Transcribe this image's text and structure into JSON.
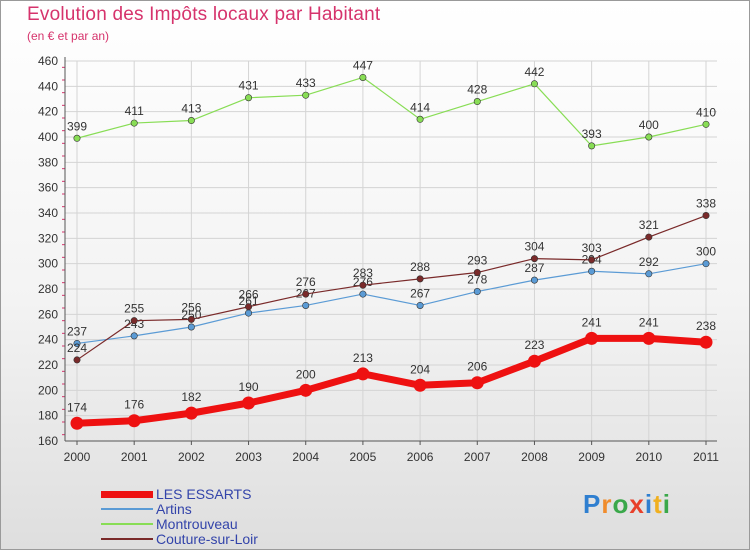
{
  "chart_data": {
    "type": "line",
    "title": "Evolution des Impôts locaux par Habitant",
    "subtitle": "(en € et par an)",
    "xlabel": "",
    "ylabel": "",
    "categories": [
      "2000",
      "2001",
      "2002",
      "2003",
      "2004",
      "2005",
      "2006",
      "2007",
      "2008",
      "2009",
      "2010",
      "2011"
    ],
    "ylim": [
      160,
      460
    ],
    "yticks": [
      160,
      180,
      200,
      220,
      240,
      260,
      280,
      300,
      320,
      340,
      360,
      380,
      400,
      420,
      440,
      460
    ],
    "series": [
      {
        "name": "Montrouveau",
        "color": "#88dd55",
        "width": 1.2,
        "values": [
          399,
          411,
          413,
          431,
          433,
          447,
          414,
          428,
          442,
          393,
          400,
          410
        ],
        "labels": [
          "399",
          "411",
          "413",
          "431",
          "433",
          "447",
          "414",
          "428",
          "442",
          "393",
          "400",
          "410"
        ]
      },
      {
        "name": "Artins",
        "color": "#5b9bd5",
        "width": 1.2,
        "values": [
          237,
          243,
          250,
          261,
          267,
          276,
          267,
          278,
          287,
          294,
          292,
          300
        ],
        "labels": [
          "237",
          "243",
          "250",
          "261",
          "267",
          "276",
          "267",
          "278",
          "287",
          "294",
          "292",
          "300"
        ]
      },
      {
        "name": "Couture-sur-Loir",
        "color": "#7a2a2a",
        "width": 1.2,
        "values": [
          224,
          255,
          256,
          266,
          276,
          283,
          288,
          293,
          304,
          303,
          321,
          338
        ],
        "labels": [
          "224",
          "255",
          "256",
          "266",
          "276",
          "283",
          "288",
          "293",
          "304",
          "303",
          "321",
          "338"
        ]
      },
      {
        "name": "LES ESSARTS",
        "color": "#ee1111",
        "width": 7,
        "values": [
          174,
          176,
          182,
          190,
          200,
          213,
          204,
          206,
          223,
          241,
          241,
          238
        ],
        "labels": [
          "174",
          "176",
          "182",
          "190",
          "200",
          "213",
          "204",
          "206",
          "223",
          "241",
          "241",
          "238"
        ]
      }
    ],
    "legend": [
      {
        "name": "LES ESSARTS",
        "color": "#ee1111",
        "thick": true
      },
      {
        "name": "Artins",
        "color": "#5b9bd5",
        "thick": false
      },
      {
        "name": "Montrouveau",
        "color": "#88dd55",
        "thick": false
      },
      {
        "name": "Couture-sur-Loir",
        "color": "#7a2a2a",
        "thick": false
      }
    ]
  },
  "logo": {
    "letters": [
      "P",
      "r",
      "o",
      "x",
      "i",
      "t",
      "i"
    ],
    "colors": [
      "#2f7fd0",
      "#f08c2c",
      "#3aa84a",
      "#e8402a",
      "#2f7fd0",
      "#f0b020",
      "#3aa84a"
    ]
  }
}
